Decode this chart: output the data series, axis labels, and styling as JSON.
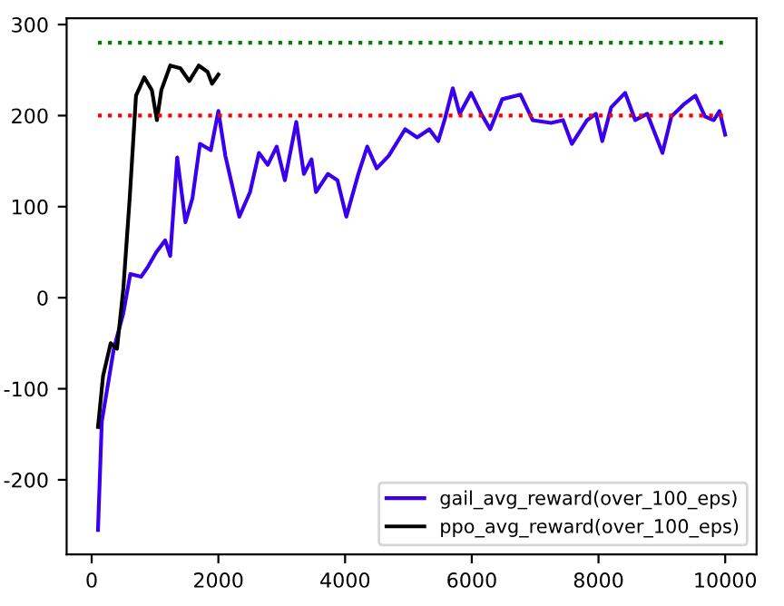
{
  "chart_data": {
    "type": "line",
    "xlim": [
      -395,
      10495
    ],
    "ylim": [
      -282,
      307
    ],
    "xticks": [
      0,
      2000,
      4000,
      6000,
      8000,
      10000
    ],
    "yticks": [
      -200,
      -100,
      0,
      100,
      200,
      300
    ],
    "grid": false,
    "legend": "bottom right",
    "series": [
      {
        "name": "gail_avg_reward(over_100_eps)",
        "color": "#3a00ee",
        "line_style": "solid",
        "x": [
          100,
          160,
          350,
          500,
          610,
          780,
          880,
          1020,
          1160,
          1240,
          1350,
          1480,
          1590,
          1710,
          1880,
          2000,
          2110,
          2330,
          2500,
          2640,
          2780,
          2920,
          3050,
          3230,
          3350,
          3470,
          3540,
          3730,
          3880,
          4020,
          4210,
          4350,
          4500,
          4690,
          4948,
          5138,
          5330,
          5470,
          5570,
          5700,
          5810,
          5990,
          6150,
          6290,
          6480,
          6770,
          6960,
          7250,
          7440,
          7580,
          7820,
          7960,
          8060,
          8200,
          8420,
          8580,
          8770,
          9010,
          9150,
          9340,
          9530,
          9680,
          9820,
          9910,
          10000
        ],
        "values": [
          -255,
          -136,
          -56,
          -17,
          26,
          23,
          33,
          50,
          63,
          46,
          154,
          83,
          109,
          169,
          162,
          205,
          156,
          89,
          116,
          159,
          146,
          166,
          129,
          193,
          136,
          152,
          116,
          136,
          129,
          89,
          136,
          166,
          142,
          156,
          185,
          176,
          185,
          172,
          195,
          230,
          202,
          225,
          202,
          185,
          218,
          223,
          195,
          192,
          195,
          169,
          195,
          202,
          172,
          209,
          225,
          195,
          202,
          159,
          199,
          212,
          222,
          199,
          195,
          205,
          179
        ]
      },
      {
        "name": "ppo_avg_reward(over_100_eps)",
        "color": "#000000",
        "line_style": "solid",
        "x": [
          100,
          180,
          300,
          400,
          500,
          600,
          700,
          830,
          950,
          1030,
          1100,
          1240,
          1400,
          1540,
          1690,
          1830,
          1900,
          2000
        ],
        "values": [
          -142,
          -86,
          -50,
          -56,
          10,
          109,
          222,
          242,
          228,
          195,
          228,
          255,
          252,
          238,
          255,
          248,
          235,
          245
        ]
      },
      {
        "color": "#ff0000",
        "line_style": "dotted",
        "x": [
          100,
          10000
        ],
        "values": [
          200,
          200
        ]
      },
      {
        "color": "#008000",
        "line_style": "dotted",
        "x": [
          100,
          10000
        ],
        "values": [
          280,
          280
        ]
      }
    ]
  }
}
